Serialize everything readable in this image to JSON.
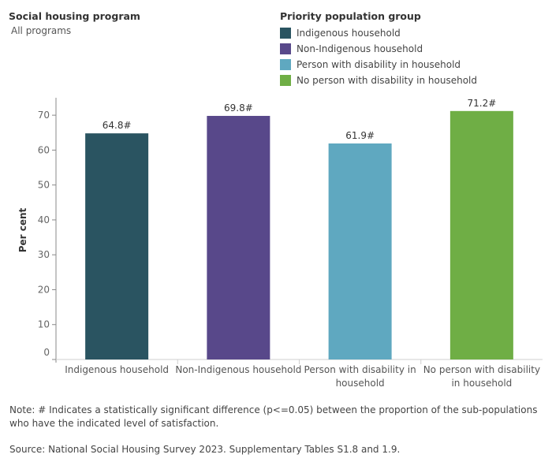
{
  "filter": {
    "label": "Social housing program",
    "value": "All programs"
  },
  "legend": {
    "title": "Priority population group",
    "items": [
      {
        "label": "Indigenous household",
        "color": "#2a5461"
      },
      {
        "label": "Non-Indigenous household",
        "color": "#58488a"
      },
      {
        "label": "Person with disability in household",
        "color": "#5fa8c0"
      },
      {
        "label": "No person with disability in household",
        "color": "#6fae45"
      }
    ]
  },
  "chart_data": {
    "type": "bar",
    "ylabel": "Per cent",
    "xlabel": "",
    "ylim": [
      0,
      75
    ],
    "yticks": [
      0,
      10,
      20,
      30,
      40,
      50,
      60,
      70
    ],
    "grid": false,
    "legend_position": "top-right",
    "categories": [
      [
        "Indigenous household"
      ],
      [
        "Non-Indigenous household"
      ],
      [
        "Person with disability in",
        "household"
      ],
      [
        "No person with disability",
        "in household"
      ]
    ],
    "values": [
      64.8,
      69.8,
      61.9,
      71.2
    ],
    "labels": [
      "64.8#",
      "69.8#",
      "61.9#",
      "71.2#"
    ],
    "colors": [
      "#2a5461",
      "#58488a",
      "#5fa8c0",
      "#6fae45"
    ]
  },
  "note": "Note: # Indicates a statistically significant difference (p<=0.05) between the proportion of the sub-populations who have the indicated level of satisfaction.",
  "source": "Source: National Social Housing Survey 2023. Supplementary Tables S1.8 and 1.9."
}
